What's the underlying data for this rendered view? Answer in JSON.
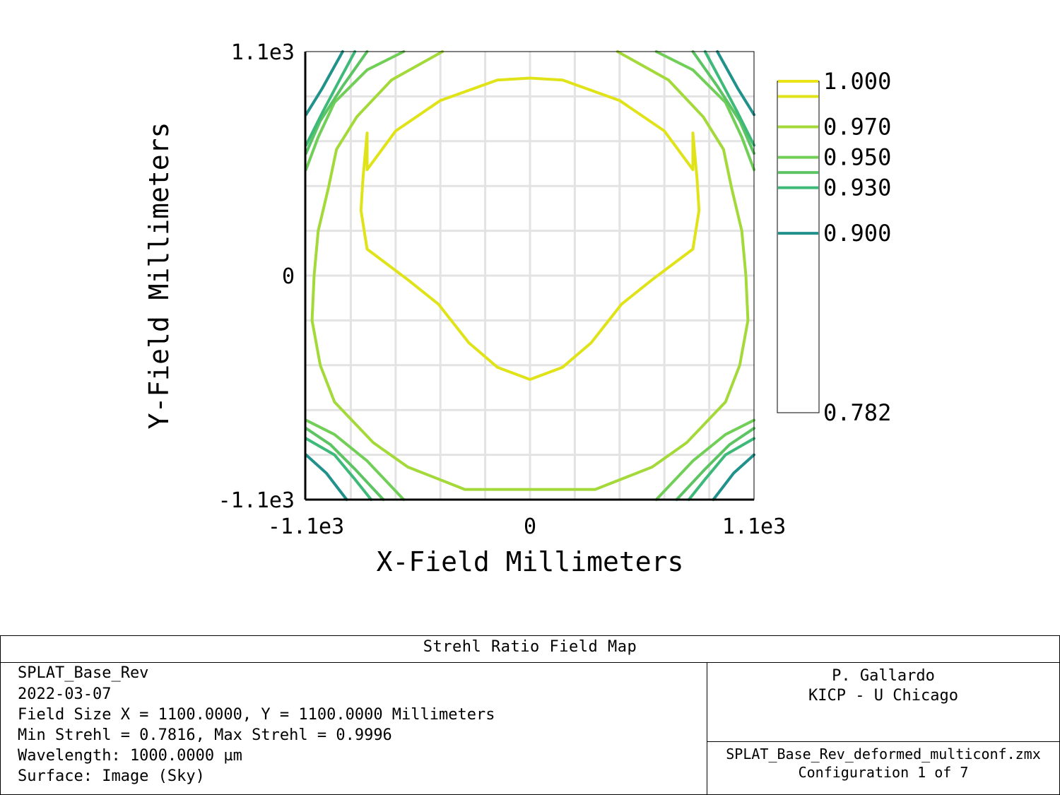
{
  "chart_data": {
    "type": "contour",
    "title": "",
    "xlabel": "X-Field Millimeters",
    "ylabel": "Y-Field Millimeters",
    "xlim": [
      -1100,
      1100
    ],
    "ylim": [
      -1100,
      1100
    ],
    "x_ticks": [
      {
        "value": -1100,
        "label": "-1.1e3"
      },
      {
        "value": 0,
        "label": "0"
      },
      {
        "value": 1100,
        "label": "1.1e3"
      }
    ],
    "y_ticks": [
      {
        "value": 1100,
        "label": "1.1e3"
      },
      {
        "value": 0,
        "label": "0"
      },
      {
        "value": -1100,
        "label": "-1.1e3"
      }
    ],
    "grid": true,
    "grid_step": 220,
    "colorbar": {
      "min": 0.782,
      "max": 1.0,
      "labels": [
        {
          "value": 1.0,
          "label": "1.000"
        },
        {
          "value": 0.97,
          "label": "0.970"
        },
        {
          "value": 0.95,
          "label": "0.950"
        },
        {
          "value": 0.93,
          "label": "0.930"
        },
        {
          "value": 0.9,
          "label": "0.900"
        },
        {
          "value": 0.782,
          "label": "0.782"
        }
      ]
    },
    "contour_levels": [
      {
        "level": 1.0,
        "color": "#e8e417"
      },
      {
        "level": 0.99,
        "color": "#dfe318"
      },
      {
        "level": 0.97,
        "color": "#a4d93a"
      },
      {
        "level": 0.95,
        "color": "#71cf57"
      },
      {
        "level": 0.94,
        "color": "#5cc463"
      },
      {
        "level": 0.93,
        "color": "#3db97a"
      },
      {
        "level": 0.9,
        "color": "#21918c"
      }
    ],
    "contours": [
      {
        "level": 0.99,
        "color": "#dfe318",
        "points": [
          [
            -800,
            700
          ],
          [
            -820,
            480
          ],
          [
            -830,
            320
          ],
          [
            -800,
            130
          ],
          [
            -600,
            -20
          ],
          [
            -450,
            -140
          ],
          [
            -300,
            -330
          ],
          [
            -160,
            -450
          ],
          [
            0,
            -510
          ],
          [
            160,
            -450
          ],
          [
            300,
            -330
          ],
          [
            450,
            -140
          ],
          [
            600,
            -20
          ],
          [
            800,
            130
          ],
          [
            830,
            320
          ],
          [
            820,
            480
          ],
          [
            800,
            700
          ]
        ]
      },
      {
        "level": 0.99,
        "color": "#dfe318",
        "points": [
          [
            -800,
            700
          ],
          [
            -800,
            520
          ],
          [
            -660,
            710
          ],
          [
            -440,
            860
          ],
          [
            -160,
            960
          ],
          [
            0,
            970
          ],
          [
            160,
            960
          ],
          [
            440,
            860
          ],
          [
            660,
            710
          ],
          [
            800,
            520
          ],
          [
            800,
            700
          ]
        ]
      },
      {
        "level": 0.97,
        "color": "#a4d93a",
        "points": [
          [
            -430,
            1100
          ],
          [
            -680,
            960
          ],
          [
            -850,
            780
          ],
          [
            -950,
            620
          ],
          [
            -990,
            430
          ],
          [
            -1040,
            220
          ],
          [
            -1060,
            0
          ],
          [
            -1070,
            -220
          ],
          [
            -1030,
            -440
          ],
          [
            -960,
            -620
          ],
          [
            -770,
            -820
          ],
          [
            -600,
            -940
          ],
          [
            -320,
            -1050
          ],
          [
            0,
            -1050
          ],
          [
            320,
            -1050
          ],
          [
            600,
            -940
          ],
          [
            770,
            -820
          ],
          [
            960,
            -620
          ],
          [
            1030,
            -440
          ],
          [
            1070,
            -220
          ],
          [
            1060,
            0
          ],
          [
            1040,
            220
          ],
          [
            990,
            430
          ],
          [
            950,
            620
          ],
          [
            850,
            780
          ],
          [
            680,
            960
          ],
          [
            430,
            1100
          ]
        ]
      },
      {
        "level": 0.95,
        "color": "#71cf57",
        "points": [
          [
            -1100,
            -710
          ],
          [
            -960,
            -780
          ],
          [
            -800,
            -910
          ],
          [
            -620,
            -1100
          ]
        ]
      },
      {
        "level": 0.95,
        "color": "#71cf57",
        "points": [
          [
            1100,
            -710
          ],
          [
            960,
            -780
          ],
          [
            800,
            -910
          ],
          [
            620,
            -1100
          ]
        ]
      },
      {
        "level": 0.95,
        "color": "#71cf57",
        "points": [
          [
            -1100,
            520
          ],
          [
            -1040,
            680
          ],
          [
            -960,
            850
          ],
          [
            -800,
            1010
          ],
          [
            -620,
            1100
          ]
        ]
      },
      {
        "level": 0.95,
        "color": "#71cf57",
        "points": [
          [
            1100,
            520
          ],
          [
            1040,
            680
          ],
          [
            960,
            850
          ],
          [
            800,
            1010
          ],
          [
            620,
            1100
          ]
        ]
      },
      {
        "level": 0.94,
        "color": "#5cc463",
        "points": [
          [
            -1100,
            -750
          ],
          [
            -980,
            -830
          ],
          [
            -860,
            -950
          ],
          [
            -720,
            -1100
          ]
        ]
      },
      {
        "level": 0.94,
        "color": "#5cc463",
        "points": [
          [
            1100,
            -750
          ],
          [
            980,
            -830
          ],
          [
            860,
            -950
          ],
          [
            720,
            -1100
          ]
        ]
      },
      {
        "level": 0.94,
        "color": "#5cc463",
        "points": [
          [
            -1100,
            600
          ],
          [
            -1030,
            760
          ],
          [
            -920,
            930
          ],
          [
            -800,
            1100
          ]
        ]
      },
      {
        "level": 0.94,
        "color": "#5cc463",
        "points": [
          [
            1100,
            600
          ],
          [
            1030,
            760
          ],
          [
            920,
            930
          ],
          [
            800,
            1100
          ]
        ]
      },
      {
        "level": 0.93,
        "color": "#3db97a",
        "points": [
          [
            -1100,
            -800
          ],
          [
            -960,
            -880
          ],
          [
            -860,
            -1000
          ],
          [
            -780,
            -1100
          ]
        ]
      },
      {
        "level": 0.93,
        "color": "#3db97a",
        "points": [
          [
            1100,
            -800
          ],
          [
            960,
            -880
          ],
          [
            860,
            -1000
          ],
          [
            780,
            -1100
          ]
        ]
      },
      {
        "level": 0.93,
        "color": "#3db97a",
        "points": [
          [
            -1100,
            640
          ],
          [
            -1020,
            800
          ],
          [
            -930,
            970
          ],
          [
            -860,
            1100
          ]
        ]
      },
      {
        "level": 0.93,
        "color": "#3db97a",
        "points": [
          [
            1100,
            640
          ],
          [
            1020,
            800
          ],
          [
            930,
            970
          ],
          [
            860,
            1100
          ]
        ]
      },
      {
        "level": 0.9,
        "color": "#21918c",
        "points": [
          [
            -1100,
            -880
          ],
          [
            -1000,
            -970
          ],
          [
            -900,
            -1100
          ]
        ]
      },
      {
        "level": 0.9,
        "color": "#21918c",
        "points": [
          [
            1100,
            -880
          ],
          [
            1000,
            -970
          ],
          [
            900,
            -1100
          ]
        ]
      },
      {
        "level": 0.9,
        "color": "#21918c",
        "points": [
          [
            -1100,
            790
          ],
          [
            -1020,
            920
          ],
          [
            -920,
            1100
          ]
        ]
      },
      {
        "level": 0.9,
        "color": "#21918c",
        "points": [
          [
            1100,
            790
          ],
          [
            1020,
            920
          ],
          [
            920,
            1100
          ]
        ]
      }
    ]
  },
  "info": {
    "title": "Strehl Ratio Field Map",
    "left_lines": [
      "SPLAT_Base_Rev",
      "2022-03-07",
      "Field Size X = 1100.0000, Y = 1100.0000 Millimeters",
      "Min Strehl = 0.7816, Max Strehl = 0.9996",
      "Wavelength: 1000.0000 µm",
      "Surface: Image (Sky)"
    ],
    "author": "P. Gallardo",
    "affiliation": "KICP - U Chicago",
    "file": "SPLAT_Base_Rev_deformed_multiconf.zmx",
    "configuration": "Configuration 1 of 7"
  }
}
